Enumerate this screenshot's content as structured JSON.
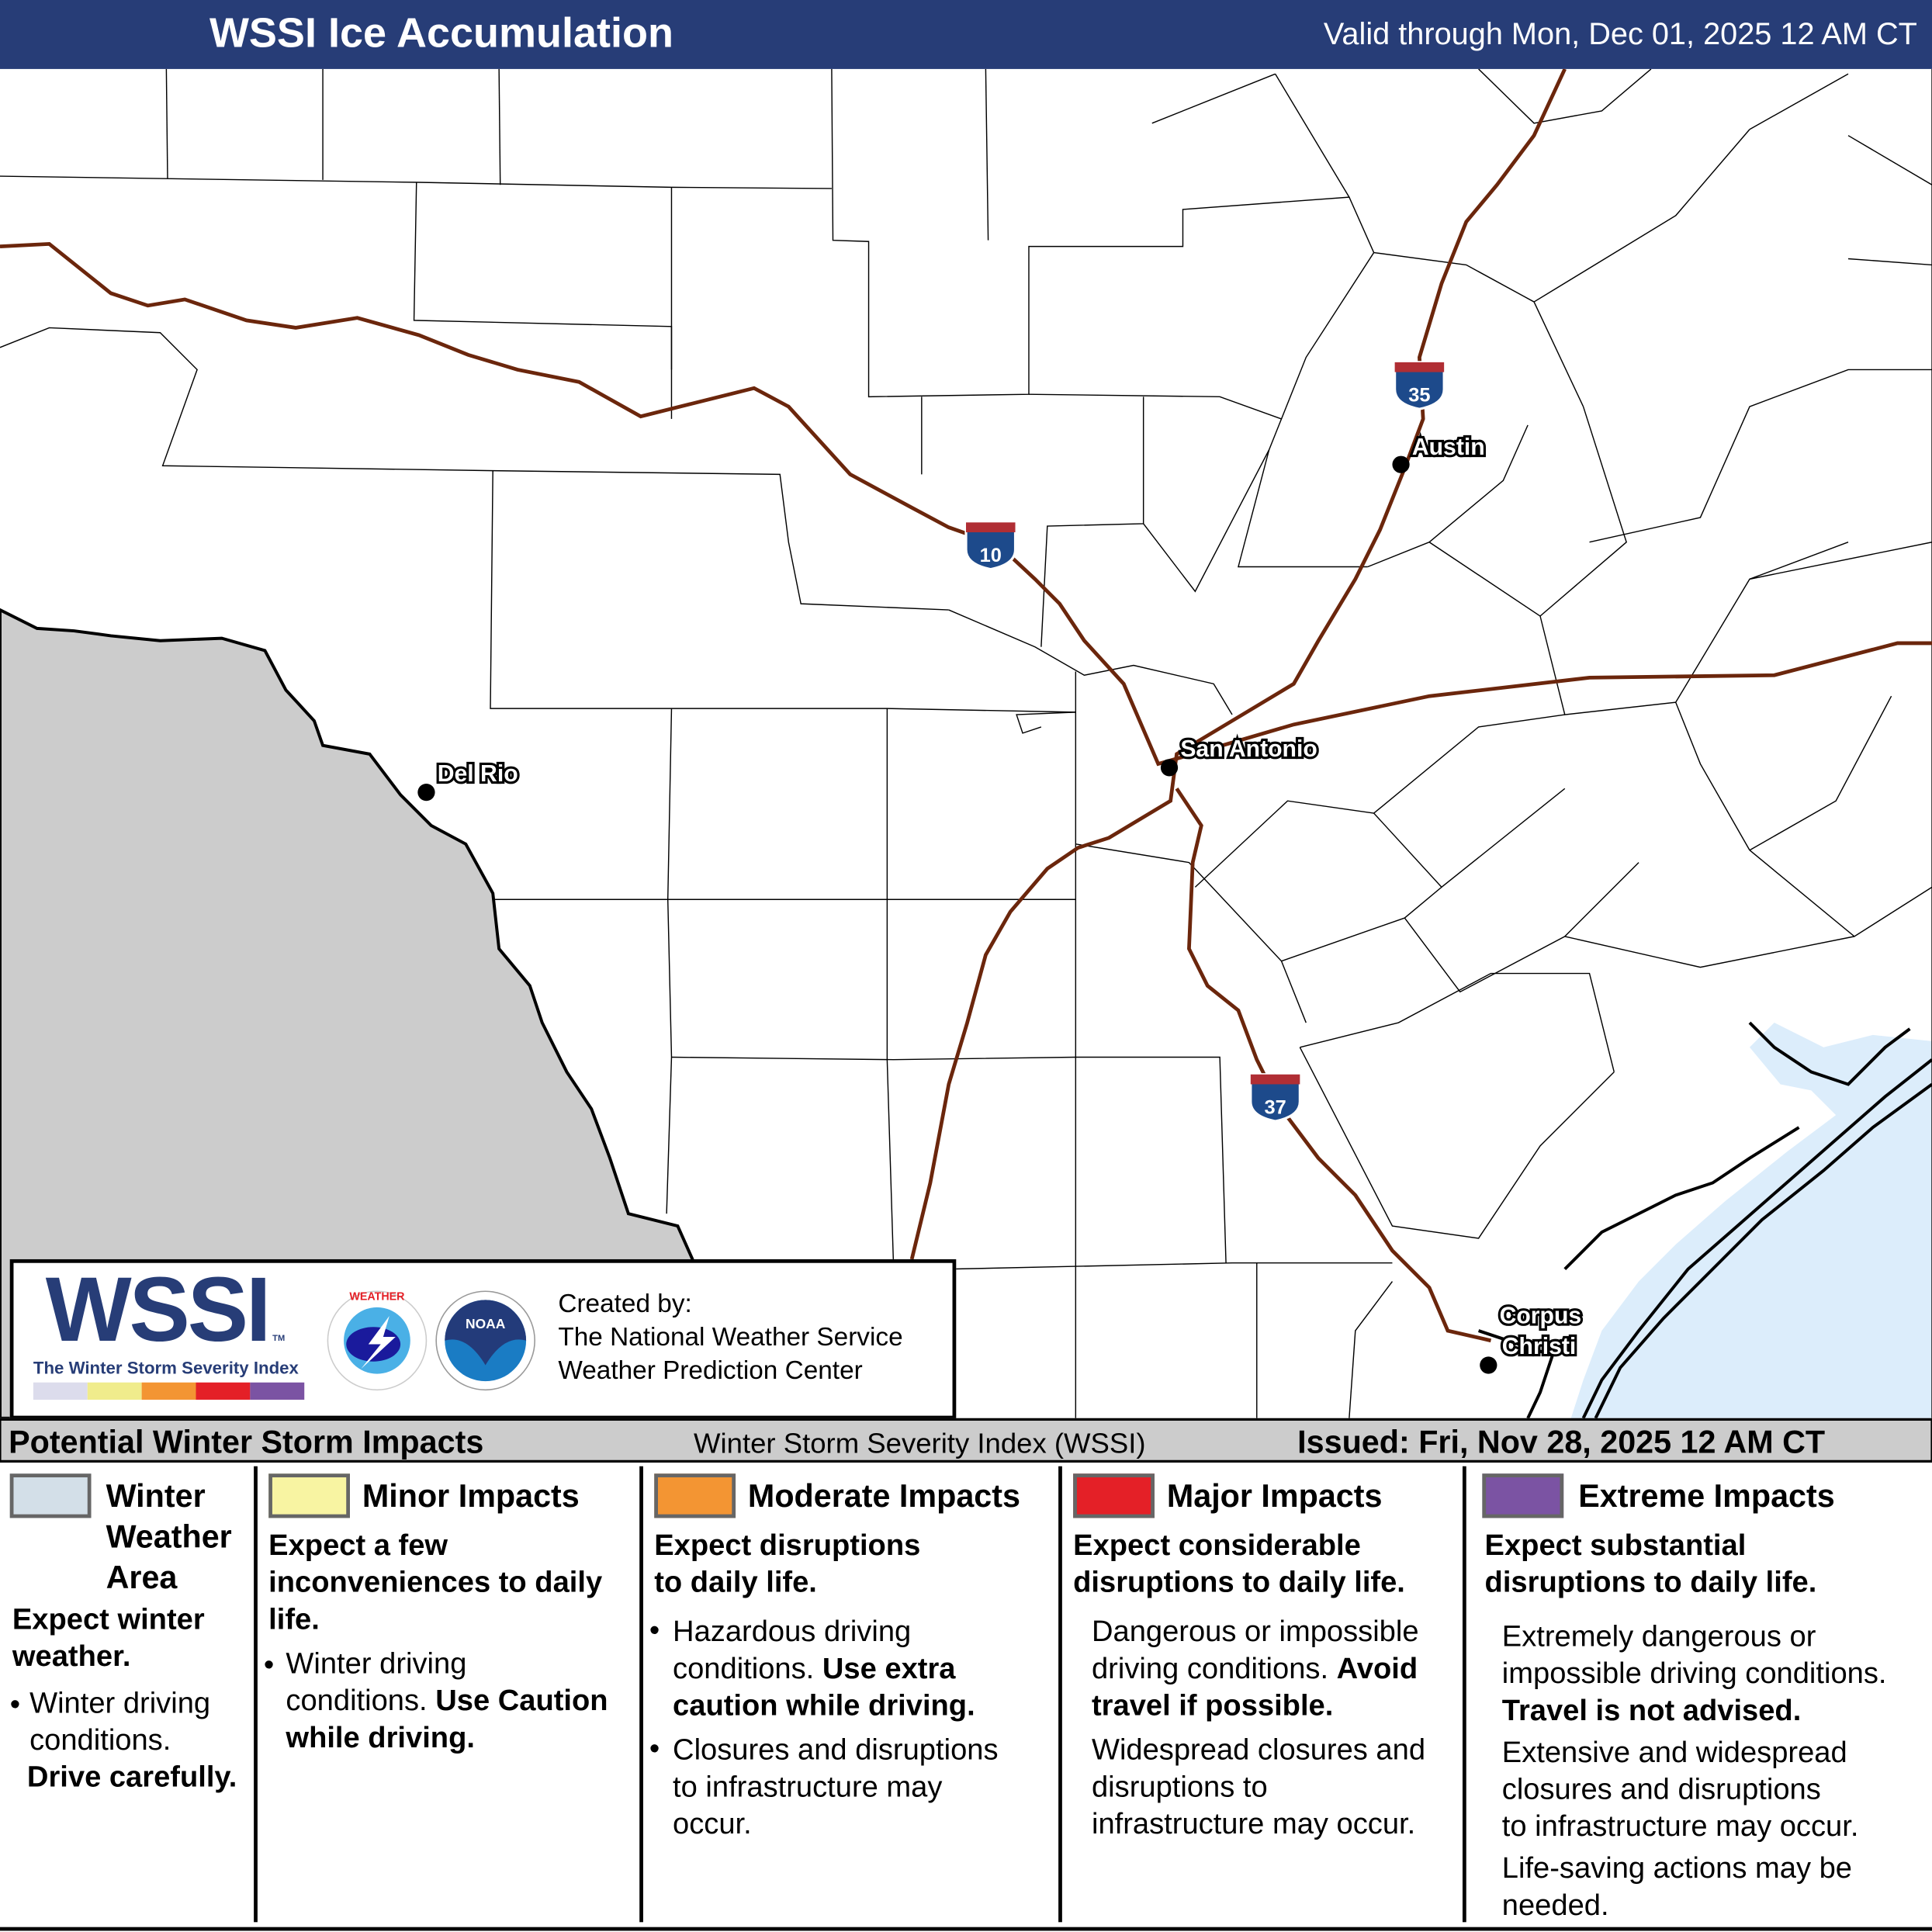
{
  "header": {
    "title": "WSSI Ice Accumulation",
    "valid": "Valid through Mon, Dec 01, 2025 12 AM CT"
  },
  "map": {
    "cities": [
      {
        "name": "Austin"
      },
      {
        "name": "San Antonio"
      },
      {
        "name": "Del Rio"
      },
      {
        "name": "Corpus"
      },
      {
        "name": "Christi"
      }
    ],
    "interstates": [
      "10",
      "35",
      "37"
    ],
    "colors": {
      "mexico": "#cccccc",
      "water": "#dcedfb",
      "highway": "#6b260c",
      "county": "#000000"
    }
  },
  "logo": {
    "wssi": "WSSI",
    "tm": "TM",
    "subtitle": "The Winter Storm Severity Index",
    "created_by": "Created by:",
    "org1": "The National Weather Service",
    "org2": "Weather Prediction Center",
    "nws_text": "NATIONAL WEATHER SERVICE",
    "noaa_text": "NOAA"
  },
  "legend_bar": {
    "left": "Potential Winter Storm Impacts",
    "center": "Winter Storm Severity Index (WSSI)",
    "right": "Issued: Fri, Nov 28, 2025 12 AM CT"
  },
  "categories": [
    {
      "title": "Winter Weather Area",
      "color": "#d3dfe8",
      "t1": "Winter",
      "t2": "Weather",
      "t3": "Area",
      "summary1": "Expect winter",
      "summary2": "weather.",
      "b1": "Winter driving",
      "b2": "conditions.",
      "b3": "Drive carefully."
    },
    {
      "title": "Minor Impacts",
      "color": "#f8f4a2",
      "summary1": "Expect a few",
      "summary2": "inconveniences to daily",
      "summary3": "life.",
      "b1": "Winter driving",
      "b2": "conditions.",
      "b2b": "Use Caution",
      "b3": "while driving."
    },
    {
      "title": "Moderate Impacts",
      "color": "#f39533",
      "summary1": "Expect disruptions",
      "summary2": "to daily life.",
      "b1": "Hazardous driving",
      "b2": "conditions.",
      "b2b": "Use extra",
      "b3": "caution while driving.",
      "c1": "Closures and disruptions",
      "c2": "to infrastructure may",
      "c3": "occur."
    },
    {
      "title": "Major Impacts",
      "color": "#e42027",
      "summary1": "Expect considerable",
      "summary2": "disruptions to daily life.",
      "b1": "Dangerous or impossible",
      "b2": "driving conditions.",
      "b2b": "Avoid",
      "b3": "travel if possible.",
      "c1": "Widespread closures and",
      "c2": "disruptions to",
      "c3": "infrastructure may occur."
    },
    {
      "title": "Extreme Impacts",
      "color": "#7b53a3",
      "summary1": "Expect substantial",
      "summary2": "disruptions to daily life.",
      "b1": "Extremely dangerous or",
      "b2": "impossible driving conditions.",
      "b3": "Travel is not advised.",
      "c1": "Extensive and widespread",
      "c2": "closures and disruptions",
      "c3": "to infrastructure may occur.",
      "d1": "Life-saving actions may be",
      "d2": "needed."
    }
  ]
}
